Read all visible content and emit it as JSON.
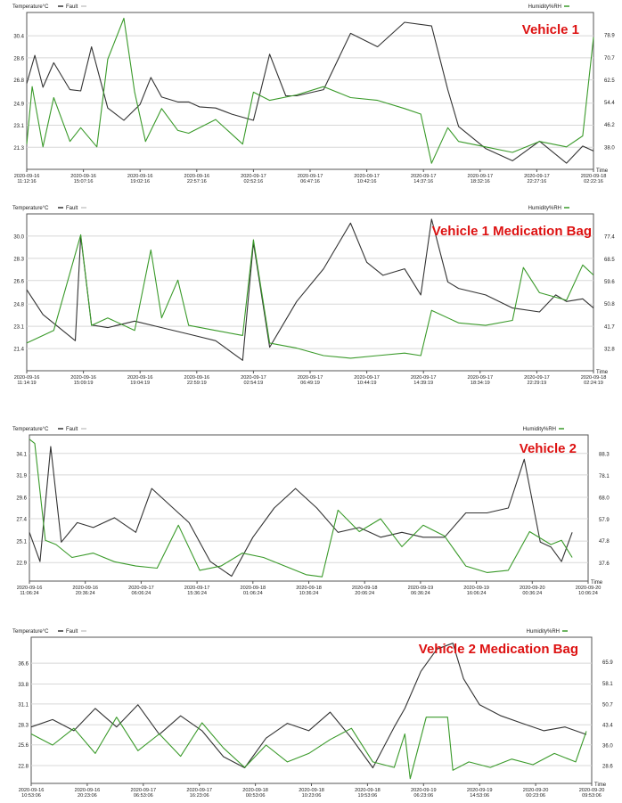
{
  "legend_labels": {
    "temperature": "Temperature°C",
    "fault": "Fault",
    "humidity": "Humidity%RH",
    "time": "Time"
  },
  "colors": {
    "temperature": "#333333",
    "humidity": "#3a9a2a",
    "fault": "#c8c8c8",
    "title": "#dd1111",
    "grid": "#d8d8d8",
    "frame": "#555555"
  },
  "chart_data": [
    {
      "type": "line",
      "title": "Vehicle 1",
      "y_left_ticks": [
        "30.4",
        "28.6",
        "26.8",
        "24.9",
        "23.1",
        "21.3"
      ],
      "y_right_ticks": [
        "78.9",
        "70.7",
        "62.5",
        "54.4",
        "46.2",
        "38.0"
      ],
      "ylim_left": [
        19.5,
        32.3
      ],
      "ylim_right": [
        29.8,
        87.1
      ],
      "x_ticks": [
        [
          "2020-09-16",
          "11:12:16"
        ],
        [
          "2020-09-16",
          "15:07:16"
        ],
        [
          "2020-09-16",
          "19:02:16"
        ],
        [
          "2020-09-16",
          "22:57:16"
        ],
        [
          "2020-09-17",
          "02:52:16"
        ],
        [
          "2020-09-17",
          "06:47:16"
        ],
        [
          "2020-09-17",
          "10:42:16"
        ],
        [
          "2020-09-17",
          "14:37:16"
        ],
        [
          "2020-09-17",
          "18:32:16"
        ],
        [
          "2020-09-17",
          "22:27:16"
        ],
        [
          "2020-09-18",
          "02:22:16"
        ]
      ],
      "series": [
        {
          "name": "Temperature°C",
          "axis": "left",
          "x": [
            0,
            0.15,
            0.3,
            0.5,
            0.8,
            1.0,
            1.2,
            1.5,
            1.8,
            2.1,
            2.3,
            2.5,
            2.8,
            3.0,
            3.2,
            3.5,
            3.8,
            4.2,
            4.5,
            4.8,
            5.0,
            5.5,
            6.0,
            6.5,
            7.0,
            7.5,
            7.8,
            8.0,
            8.5,
            9.0,
            9.5,
            10.0,
            10.3,
            10.5
          ],
          "y": [
            26.5,
            28.8,
            26.2,
            28.2,
            26.0,
            25.9,
            29.5,
            24.5,
            23.5,
            24.8,
            27.0,
            25.4,
            25.0,
            25.0,
            24.6,
            24.5,
            24.0,
            23.5,
            28.9,
            25.5,
            25.5,
            26.0,
            30.6,
            29.5,
            31.5,
            31.2,
            26.0,
            23.0,
            21.2,
            20.2,
            21.8,
            20.0,
            21.4,
            21.0
          ]
        },
        {
          "name": "Humidity%RH",
          "axis": "right",
          "x": [
            0,
            0.1,
            0.3,
            0.5,
            0.8,
            1.0,
            1.3,
            1.5,
            1.8,
            2.0,
            2.2,
            2.5,
            2.8,
            3.0,
            3.5,
            4.0,
            4.2,
            4.5,
            5.0,
            5.5,
            6.0,
            6.5,
            7.0,
            7.3,
            7.5,
            7.8,
            8.0,
            8.5,
            9.0,
            9.5,
            10.0,
            10.3,
            10.5
          ],
          "y": [
            39,
            60,
            38,
            56,
            40,
            45,
            38,
            70,
            85,
            58,
            40,
            52,
            44,
            43,
            48,
            39,
            58,
            55,
            57,
            60,
            56,
            55,
            52,
            50,
            32,
            45,
            40,
            38,
            36,
            40,
            38,
            42,
            78
          ]
        }
      ]
    },
    {
      "type": "line",
      "title": "Vehicle 1 Medication Bag",
      "y_left_ticks": [
        "30.0",
        "28.3",
        "26.6",
        "24.8",
        "23.1",
        "21.4"
      ],
      "y_right_ticks": [
        "77.4",
        "68.5",
        "59.6",
        "50.8",
        "41.7",
        "32.8"
      ],
      "ylim_left": [
        19.7,
        31.7
      ],
      "ylim_right": [
        24.0,
        86.3
      ],
      "x_ticks": [
        [
          "2020-09-16",
          "11:14:19"
        ],
        [
          "2020-09-16",
          "15:09:19"
        ],
        [
          "2020-09-16",
          "19:04:19"
        ],
        [
          "2020-09-16",
          "22:59:19"
        ],
        [
          "2020-09-17",
          "02:54:19"
        ],
        [
          "2020-09-17",
          "06:49:19"
        ],
        [
          "2020-09-17",
          "10:44:19"
        ],
        [
          "2020-09-17",
          "14:39:19"
        ],
        [
          "2020-09-17",
          "18:34:19"
        ],
        [
          "2020-09-17",
          "22:29:19"
        ],
        [
          "2020-09-18",
          "02:24:19"
        ]
      ],
      "series": [
        {
          "name": "Temperature°C",
          "axis": "left",
          "x": [
            0,
            0.3,
            0.6,
            0.9,
            1.0,
            1.2,
            1.5,
            2.0,
            2.5,
            3.0,
            3.5,
            4.0,
            4.2,
            4.5,
            5.0,
            5.5,
            6.0,
            6.3,
            6.6,
            7.0,
            7.3,
            7.5,
            7.8,
            8.0,
            8.5,
            9.0,
            9.5,
            9.8,
            10.0,
            10.3,
            10.5
          ],
          "y": [
            25.9,
            24.0,
            23.0,
            22.0,
            30.0,
            23.2,
            23.0,
            23.5,
            23.0,
            22.5,
            22.0,
            20.5,
            29.5,
            21.5,
            25.0,
            27.5,
            31.0,
            28.0,
            27.0,
            27.5,
            25.5,
            31.3,
            26.5,
            26.0,
            25.5,
            24.5,
            24.2,
            25.5,
            25.0,
            25.2,
            24.5
          ]
        },
        {
          "name": "Humidity%RH",
          "axis": "right",
          "x": [
            0,
            0.5,
            1.0,
            1.2,
            1.5,
            2.0,
            2.3,
            2.5,
            2.8,
            3.0,
            3.5,
            4.0,
            4.2,
            4.5,
            5.0,
            5.5,
            6.0,
            6.5,
            7.0,
            7.3,
            7.5,
            8.0,
            8.5,
            9.0,
            9.2,
            9.5,
            10.0,
            10.3,
            10.5
          ],
          "y": [
            35,
            40,
            78,
            42,
            45,
            40,
            72,
            45,
            60,
            42,
            40,
            38,
            76,
            35,
            33,
            30,
            29,
            30,
            31,
            30,
            48,
            43,
            42,
            44,
            65,
            55,
            52,
            66,
            62
          ]
        }
      ]
    },
    {
      "type": "line",
      "title": "Vehicle 2",
      "y_left_ticks": [
        "34.1",
        "31.9",
        "29.6",
        "27.4",
        "25.1",
        "22.9"
      ],
      "y_right_ticks": [
        "88.3",
        "78.1",
        "68.0",
        "57.9",
        "47.8",
        "37.6"
      ],
      "ylim_left": [
        21.0,
        36.0
      ],
      "ylim_right": [
        29.0,
        97.0
      ],
      "x_ticks": [
        [
          "2020-09-16",
          "11:06:24"
        ],
        [
          "2020-09-16",
          "20:36:24"
        ],
        [
          "2020-09-17",
          "06:06:24"
        ],
        [
          "2020-09-17",
          "15:36:24"
        ],
        [
          "2020-09-18",
          "01:06:24"
        ],
        [
          "2020-09-18",
          "10:36:24"
        ],
        [
          "2020-09-18",
          "20:06:24"
        ],
        [
          "2020-09-19",
          "06:36:24"
        ],
        [
          "2020-09-19",
          "16:06:24"
        ],
        [
          "2020-09-20",
          "00:36:24"
        ],
        [
          "2020-09-20",
          "10:06:24"
        ]
      ],
      "series": [
        {
          "name": "Temperature°C",
          "axis": "left",
          "x": [
            0,
            0.2,
            0.4,
            0.6,
            0.9,
            1.2,
            1.6,
            2.0,
            2.3,
            2.7,
            3.0,
            3.4,
            3.8,
            4.2,
            4.6,
            5.0,
            5.4,
            5.8,
            6.2,
            6.6,
            7.0,
            7.4,
            7.8,
            8.2,
            8.6,
            9.0,
            9.3,
            9.6,
            9.8,
            10.0,
            10.2
          ],
          "y": [
            26.0,
            23.0,
            34.8,
            25.0,
            27.0,
            26.5,
            27.5,
            26.0,
            30.5,
            28.5,
            27.0,
            23.0,
            21.5,
            25.5,
            28.5,
            30.5,
            28.5,
            26.0,
            26.5,
            25.5,
            26.0,
            25.5,
            25.5,
            28.0,
            28.0,
            28.5,
            33.5,
            25.0,
            24.5,
            23.0,
            26.0
          ]
        },
        {
          "name": "Humidity%RH",
          "axis": "right",
          "x": [
            0,
            0.1,
            0.3,
            0.5,
            0.8,
            1.2,
            1.6,
            2.0,
            2.4,
            2.8,
            3.2,
            3.6,
            4.0,
            4.4,
            4.8,
            5.2,
            5.5,
            5.8,
            6.2,
            6.6,
            7.0,
            7.4,
            7.8,
            8.2,
            8.6,
            9.0,
            9.4,
            9.8,
            10.0,
            10.2
          ],
          "y": [
            95,
            93,
            48,
            46,
            40,
            42,
            38,
            36,
            35,
            55,
            34,
            36,
            42,
            40,
            36,
            32,
            31,
            62,
            52,
            58,
            45,
            55,
            50,
            36,
            33,
            34,
            52,
            46,
            48,
            40
          ]
        }
      ]
    },
    {
      "type": "line",
      "title": "Vehicle 2 Medication Bag",
      "y_left_ticks": [
        "36.6",
        "33.8",
        "31.1",
        "28.3",
        "25.6",
        "22.8"
      ],
      "y_right_ticks": [
        "65.9",
        "58.1",
        "50.7",
        "43.4",
        "36.0",
        "28.6"
      ],
      "ylim_left": [
        20.4,
        40.1
      ],
      "ylim_right": [
        22.3,
        74.6
      ],
      "x_ticks": [
        [
          "2020-09-16",
          "10:53:06"
        ],
        [
          "2020-09-16",
          "20:23:06"
        ],
        [
          "2020-09-17",
          "06:53:06"
        ],
        [
          "2020-09-17",
          "16:23:06"
        ],
        [
          "2020-09-18",
          "00:53:06"
        ],
        [
          "2020-09-18",
          "10:23:06"
        ],
        [
          "2020-09-18",
          "19:53:06"
        ],
        [
          "2020-09-19",
          "06:23:06"
        ],
        [
          "2020-09-19",
          "14:53:06"
        ],
        [
          "2020-09-20",
          "00:23:06"
        ],
        [
          "2020-09-20",
          "09:53:06"
        ]
      ],
      "series": [
        {
          "name": "Temperature°C",
          "axis": "left",
          "x": [
            0,
            0.4,
            0.8,
            1.2,
            1.6,
            2.0,
            2.4,
            2.8,
            3.2,
            3.6,
            4.0,
            4.4,
            4.8,
            5.2,
            5.6,
            6.0,
            6.4,
            6.8,
            7.0,
            7.3,
            7.6,
            7.9,
            8.1,
            8.4,
            8.8,
            9.2,
            9.6,
            10.0,
            10.4
          ],
          "y": [
            28.0,
            29.0,
            27.5,
            30.5,
            28.0,
            31.0,
            27.0,
            29.5,
            27.5,
            24.0,
            22.5,
            26.5,
            28.5,
            27.5,
            30.0,
            26.5,
            22.5,
            28.0,
            30.5,
            35.5,
            38.5,
            39.3,
            34.5,
            31.0,
            29.5,
            28.5,
            27.5,
            28.0,
            27.0
          ]
        },
        {
          "name": "Humidity%RH",
          "axis": "right",
          "x": [
            0,
            0.4,
            0.8,
            1.2,
            1.6,
            2.0,
            2.4,
            2.8,
            3.2,
            3.6,
            4.0,
            4.4,
            4.8,
            5.2,
            5.6,
            6.0,
            6.4,
            6.8,
            7.0,
            7.1,
            7.4,
            7.8,
            7.9,
            8.2,
            8.6,
            9.0,
            9.4,
            9.8,
            10.2,
            10.4
          ],
          "y": [
            40,
            36,
            42,
            33,
            46,
            34,
            40,
            32,
            44,
            35,
            28,
            36,
            30,
            33,
            38,
            42,
            30,
            28,
            40,
            24,
            46,
            46,
            27,
            30,
            28,
            31,
            29,
            33,
            30,
            41
          ]
        }
      ]
    }
  ]
}
